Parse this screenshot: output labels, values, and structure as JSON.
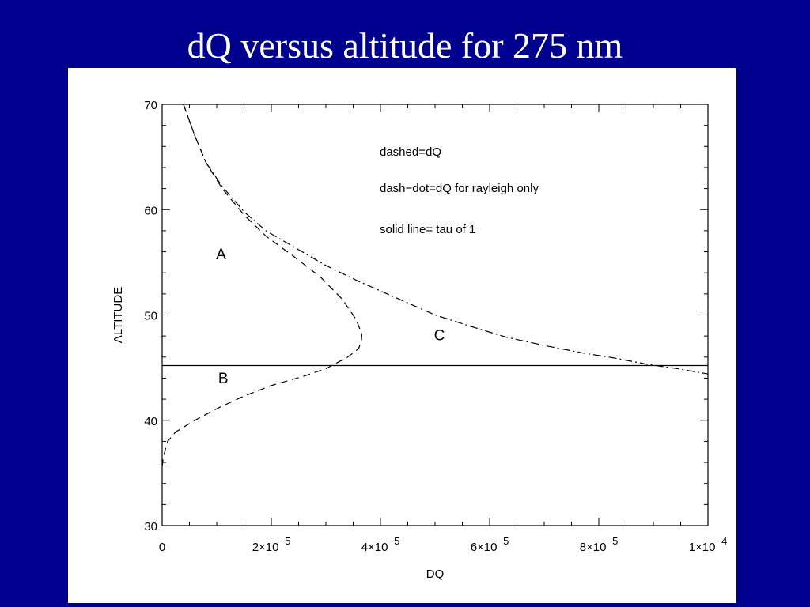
{
  "slide": {
    "title": "dQ versus altitude for 275 nm",
    "background": "#00008f",
    "title_color": "#ffffff"
  },
  "chart_data": {
    "type": "line",
    "title": "",
    "xlabel": "DQ",
    "ylabel": "ALTITUDE",
    "xlim": [
      0,
      0.0001
    ],
    "ylim": [
      30,
      70
    ],
    "x_ticks": [
      {
        "value": 0,
        "mantissa": "0",
        "exponent": ""
      },
      {
        "value": 2e-05,
        "mantissa": "2×10",
        "exponent": "−5"
      },
      {
        "value": 4e-05,
        "mantissa": "4×10",
        "exponent": "−5"
      },
      {
        "value": 6e-05,
        "mantissa": "6×10",
        "exponent": "−5"
      },
      {
        "value": 8e-05,
        "mantissa": "8×10",
        "exponent": "−5"
      },
      {
        "value": 0.0001,
        "mantissa": "1×10",
        "exponent": "−4"
      }
    ],
    "y_ticks": [
      30,
      40,
      50,
      60,
      70
    ],
    "legend_text": [
      "dashed=dQ",
      "dash−dot=dQ for rayleigh only",
      "solid line= tau of 1"
    ],
    "region_labels": [
      {
        "text": "A",
        "x": 1.08e-05,
        "y": 55.3
      },
      {
        "text": "B",
        "x": 1.12e-05,
        "y": 43.5
      },
      {
        "text": "C",
        "x": 5.08e-05,
        "y": 47.6
      }
    ],
    "series": [
      {
        "style": "dashed",
        "points": [
          [
            3.9e-06,
            70
          ],
          [
            6e-06,
            67
          ],
          [
            8e-06,
            64.5
          ],
          [
            1.1e-05,
            62
          ],
          [
            1.5e-05,
            59.5
          ],
          [
            1.9e-05,
            57.5
          ],
          [
            2.4e-05,
            55.6
          ],
          [
            2.9e-05,
            53.6
          ],
          [
            3.3e-05,
            51.5
          ],
          [
            3.55e-05,
            49.6
          ],
          [
            3.66e-05,
            48.2
          ],
          [
            3.65e-05,
            47.6
          ],
          [
            3.6e-05,
            46.8
          ],
          [
            3.4e-05,
            46
          ],
          [
            3e-05,
            44.9
          ],
          [
            2.6e-05,
            44.2
          ],
          [
            2e-05,
            43.3
          ],
          [
            1.5e-05,
            42.3
          ],
          [
            1e-05,
            41.1
          ],
          [
            6e-06,
            40
          ],
          [
            2.5e-06,
            38.9
          ],
          [
            1e-06,
            38
          ],
          [
            2e-07,
            36.5
          ],
          [
            0,
            35.5
          ]
        ]
      },
      {
        "style": "dash-dot",
        "points": [
          [
            3.9e-06,
            70
          ],
          [
            6e-06,
            67
          ],
          [
            8e-06,
            64.5
          ],
          [
            1.1e-05,
            62.2
          ],
          [
            1.5e-05,
            59.8
          ],
          [
            1.9e-05,
            58
          ],
          [
            2.4e-05,
            56.5
          ],
          [
            3e-05,
            54.7
          ],
          [
            3.6e-05,
            53.2
          ],
          [
            4.3e-05,
            51.6
          ],
          [
            5e-05,
            50
          ],
          [
            5.6e-05,
            49
          ],
          [
            6.3e-05,
            47.9
          ],
          [
            7e-05,
            47.1
          ],
          [
            7.7e-05,
            46.4
          ],
          [
            8.3e-05,
            45.9
          ],
          [
            8.9e-05,
            45.3
          ],
          [
            9.45e-05,
            44.9
          ],
          [
            0.0001,
            44.4
          ]
        ]
      },
      {
        "style": "solid",
        "points": [
          [
            0,
            45.2
          ],
          [
            0.0001,
            45.2
          ]
        ]
      }
    ],
    "grid": false,
    "legend_position": "top-right",
    "line_color": "#000000"
  }
}
